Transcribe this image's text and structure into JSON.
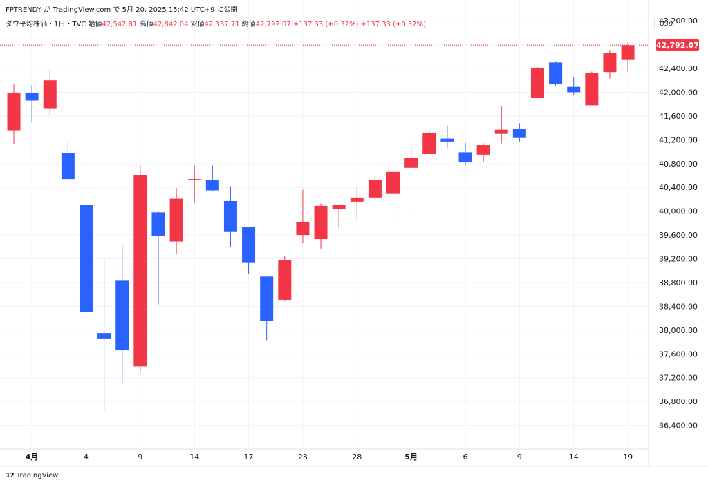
{
  "header": {
    "text": "FPTRENDY が TradingView.com で 5月 20, 2025 15:42 UTC+9 に公開"
  },
  "legend": {
    "symbol": "ダウ平均株価・1日・TVC",
    "open_label": "始値",
    "open_value": "42,542.81",
    "high_label": "高値",
    "high_value": "42,842.04",
    "low_label": "安値",
    "low_value": "42,337.71",
    "close_label": "終値",
    "close_value": "42,792.07",
    "change1": "+137.33 (+0.32%)",
    "change2": "+137.33 (+0.32%)"
  },
  "currency": "USD",
  "last_price_label": "42,792.07",
  "footer": {
    "logo_mark": "17",
    "logo_text": "TradingView"
  },
  "colors": {
    "up": "#f23645",
    "down": "#2962ff",
    "grid": "#f0f3fa",
    "price_line": "#f23645"
  },
  "chart_data": {
    "type": "candlestick",
    "ylim": [
      36000,
      43550
    ],
    "y_ticks": [
      36400,
      36800,
      37200,
      37600,
      38000,
      38400,
      38800,
      39200,
      39600,
      40000,
      40400,
      40800,
      41200,
      41600,
      42000,
      42400,
      42800,
      43200
    ],
    "y_tick_labels": [
      "36,400.00",
      "36,800.00",
      "37,200.00",
      "37,600.00",
      "38,000.00",
      "38,400.00",
      "38,800.00",
      "39,200.00",
      "39,600.00",
      "40,000.00",
      "40,400.00",
      "40,800.00",
      "41,200.00",
      "41,600.00",
      "42,000.00",
      "42,400.00",
      "42,800.00",
      "43,200.00"
    ],
    "x_labels": [
      {
        "index": 1,
        "text": "4月",
        "bold": true
      },
      {
        "index": 4,
        "text": "4",
        "bold": false
      },
      {
        "index": 7,
        "text": "9",
        "bold": false
      },
      {
        "index": 10,
        "text": "14",
        "bold": false
      },
      {
        "index": 13,
        "text": "17",
        "bold": false
      },
      {
        "index": 16,
        "text": "23",
        "bold": false
      },
      {
        "index": 19,
        "text": "28",
        "bold": false
      },
      {
        "index": 22,
        "text": "5月",
        "bold": true
      },
      {
        "index": 25,
        "text": "6",
        "bold": false
      },
      {
        "index": 28,
        "text": "9",
        "bold": false
      },
      {
        "index": 31,
        "text": "14",
        "bold": false
      },
      {
        "index": 34,
        "text": "19",
        "bold": false
      }
    ],
    "last_price": 42792.07,
    "candles": [
      {
        "o": 41360,
        "h": 42130,
        "l": 41130,
        "c": 41990
      },
      {
        "o": 41990,
        "h": 42120,
        "l": 41490,
        "c": 41860
      },
      {
        "o": 41720,
        "h": 42370,
        "l": 41620,
        "c": 42200
      },
      {
        "o": 40980,
        "h": 41160,
        "l": 40520,
        "c": 40540
      },
      {
        "o": 40100,
        "h": 40120,
        "l": 38250,
        "c": 38300
      },
      {
        "o": 37950,
        "h": 39210,
        "l": 36620,
        "c": 37860
      },
      {
        "o": 38830,
        "h": 39440,
        "l": 37100,
        "c": 37660
      },
      {
        "o": 37390,
        "h": 40770,
        "l": 37280,
        "c": 40600
      },
      {
        "o": 39980,
        "h": 40010,
        "l": 38430,
        "c": 39580
      },
      {
        "o": 39490,
        "h": 40390,
        "l": 39280,
        "c": 40210
      },
      {
        "o": 40520,
        "h": 40770,
        "l": 40140,
        "c": 40540
      },
      {
        "o": 40520,
        "h": 40770,
        "l": 40330,
        "c": 40350
      },
      {
        "o": 40170,
        "h": 40420,
        "l": 39400,
        "c": 39650
      },
      {
        "o": 39730,
        "h": 39740,
        "l": 38950,
        "c": 39140
      },
      {
        "o": 38900,
        "h": 38900,
        "l": 37830,
        "c": 38150
      },
      {
        "o": 38510,
        "h": 39250,
        "l": 38490,
        "c": 39180
      },
      {
        "o": 39600,
        "h": 40360,
        "l": 39460,
        "c": 39820
      },
      {
        "o": 39530,
        "h": 40130,
        "l": 39370,
        "c": 40090
      },
      {
        "o": 40030,
        "h": 40120,
        "l": 39710,
        "c": 40110
      },
      {
        "o": 40160,
        "h": 40400,
        "l": 39860,
        "c": 40230
      },
      {
        "o": 40230,
        "h": 40590,
        "l": 40200,
        "c": 40530
      },
      {
        "o": 40290,
        "h": 40740,
        "l": 39760,
        "c": 40660
      },
      {
        "o": 40730,
        "h": 41090,
        "l": 40720,
        "c": 40900
      },
      {
        "o": 40960,
        "h": 41370,
        "l": 40940,
        "c": 41320
      },
      {
        "o": 41220,
        "h": 41440,
        "l": 41060,
        "c": 41170
      },
      {
        "o": 40990,
        "h": 41150,
        "l": 40770,
        "c": 40820
      },
      {
        "o": 40950,
        "h": 41140,
        "l": 40830,
        "c": 41110
      },
      {
        "o": 41300,
        "h": 41770,
        "l": 41140,
        "c": 41370
      },
      {
        "o": 41390,
        "h": 41480,
        "l": 41160,
        "c": 41230
      },
      {
        "o": 41900,
        "h": 42420,
        "l": 41900,
        "c": 42410
      },
      {
        "o": 42500,
        "h": 42510,
        "l": 42110,
        "c": 42140
      },
      {
        "o": 42090,
        "h": 42250,
        "l": 41950,
        "c": 42000
      },
      {
        "o": 41780,
        "h": 42350,
        "l": 41780,
        "c": 42320
      },
      {
        "o": 42340,
        "h": 42700,
        "l": 42230,
        "c": 42660
      },
      {
        "o": 42543,
        "h": 42842,
        "l": 42338,
        "c": 42792
      }
    ]
  }
}
